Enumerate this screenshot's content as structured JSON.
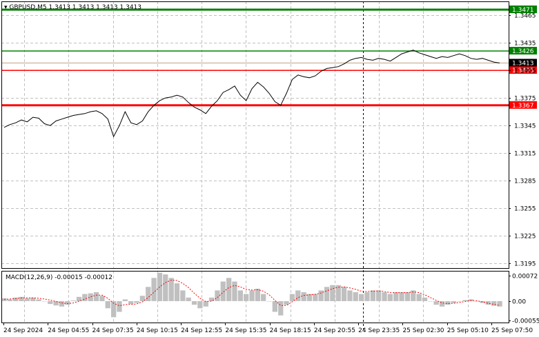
{
  "header": {
    "symbol": "GBPUSD,M5",
    "ohlc": "1.3413 1.3413 1.3413 1.3413"
  },
  "chart_data": [
    {
      "type": "line",
      "title": "GBPUSD,M5",
      "ylim": [
        1.319,
        1.348
      ],
      "y_ticks": [
        "1.3465",
        "1.3435",
        "1.3405",
        "1.3375",
        "1.3345",
        "1.3315",
        "1.3285",
        "1.3255",
        "1.3225",
        "1.3195"
      ],
      "x_ticks": [
        "24 Sep 2024",
        "24 Sep 04:55",
        "24 Sep 07:35",
        "24 Sep 10:15",
        "24 Sep 12:55",
        "24 Sep 15:35",
        "24 Sep 18:15",
        "24 Sep 20:55",
        "24 Sep 23:35",
        "25 Sep 02:30",
        "25 Sep 05:10",
        "25 Sep 07:50"
      ],
      "price": [
        1.3343,
        1.3346,
        1.3348,
        1.3351,
        1.3349,
        1.3354,
        1.3353,
        1.3347,
        1.3345,
        1.335,
        1.3352,
        1.3354,
        1.3356,
        1.3357,
        1.3358,
        1.336,
        1.3361,
        1.3358,
        1.3352,
        1.3333,
        1.3345,
        1.336,
        1.3348,
        1.3346,
        1.335,
        1.336,
        1.3367,
        1.3372,
        1.3375,
        1.3376,
        1.3378,
        1.3376,
        1.337,
        1.3365,
        1.3362,
        1.3358,
        1.3366,
        1.3372,
        1.3381,
        1.3384,
        1.3388,
        1.3378,
        1.3372,
        1.3385,
        1.3392,
        1.3387,
        1.338,
        1.3371,
        1.3367,
        1.338,
        1.3395,
        1.34,
        1.3398,
        1.3397,
        1.3399,
        1.3404,
        1.3407,
        1.3408,
        1.3409,
        1.3412,
        1.3416,
        1.3418,
        1.3419,
        1.3417,
        1.3416,
        1.3418,
        1.3417,
        1.3415,
        1.3419,
        1.3423,
        1.3425,
        1.3427,
        1.3424,
        1.3422,
        1.342,
        1.3418,
        1.342,
        1.3419,
        1.3421,
        1.3423,
        1.3421,
        1.3418,
        1.3417,
        1.3418,
        1.3416,
        1.3414,
        1.3413
      ],
      "levels": [
        {
          "label": "1.3471",
          "value": 1.3471,
          "color": "#008000"
        },
        {
          "label": "1.3426",
          "value": 1.3426,
          "color": "#008000"
        },
        {
          "label": "1.3405",
          "value": 1.3405,
          "color": "#ff0000"
        },
        {
          "label": "1.3367",
          "value": 1.3367,
          "color": "#ff0000"
        }
      ],
      "current": {
        "label": "1.3413",
        "value": 1.3413
      },
      "vline_x_index": 0.713
    },
    {
      "type": "bar",
      "title": "MACD(12,26,9) -0.00015 -0.00012",
      "ylim": [
        -0.0006,
        0.00085
      ],
      "y_ticks": [
        "0.00072",
        "0.00",
        "-0.00055"
      ],
      "histogram": [
        8e-05,
        5e-05,
        0.0001,
        0.00012,
        8e-05,
        0.0001,
        5e-05,
        0.0,
        -8e-05,
        -0.00012,
        -0.00015,
        -0.0001,
        2e-05,
        0.00012,
        0.0002,
        0.00022,
        0.00025,
        0.00015,
        -0.0002,
        -0.00045,
        -0.0003,
        5e-05,
        -8e-05,
        -5e-05,
        0.00015,
        0.0004,
        0.00065,
        0.0008,
        0.00075,
        0.00065,
        0.0005,
        0.0003,
        0.0001,
        -0.0001,
        -0.0002,
        -0.00015,
        0.0001,
        0.0003,
        0.00055,
        0.00065,
        0.00055,
        0.0003,
        0.0002,
        0.0003,
        0.00035,
        0.0002,
        0.0,
        -0.0003,
        -0.0004,
        -0.0001,
        0.0002,
        0.0003,
        0.00025,
        0.0002,
        0.0002,
        0.0003,
        0.0004,
        0.00045,
        0.00045,
        0.0004,
        0.0003,
        0.00025,
        0.0002,
        0.00025,
        0.0003,
        0.0003,
        0.00025,
        0.0002,
        0.00025,
        0.00025,
        0.00025,
        0.0003,
        0.0002,
        0.0001,
        0.0,
        -0.0001,
        -0.00015,
        -0.0001,
        -5e-05,
        0.0,
        3e-05,
        5e-05,
        0.0,
        -5e-05,
        -0.0001,
        -0.00013,
        -0.00015
      ],
      "signal": [
        5e-05,
        6e-05,
        7e-05,
        9e-05,
        9e-05,
        9e-05,
        8e-05,
        6e-05,
        3e-05,
        -1e-05,
        -5e-05,
        -7e-05,
        -5e-05,
        0.0,
        6e-05,
        0.00012,
        0.00017,
        0.00017,
        8e-05,
        -6e-05,
        -0.00013,
        -0.0001,
        -9e-05,
        -8e-05,
        -2e-05,
        0.0001,
        0.00025,
        0.0004,
        0.00052,
        0.00059,
        0.00058,
        0.0005,
        0.00038,
        0.00022,
        8e-05,
        -1e-05,
        0.0,
        0.0001,
        0.00025,
        0.00038,
        0.00044,
        0.0004,
        0.00033,
        0.00031,
        0.00032,
        0.00028,
        0.00018,
        2e-05,
        -0.00012,
        -0.00012,
        -2e-05,
        0.0001,
        0.00016,
        0.00018,
        0.00019,
        0.00023,
        0.00029,
        0.00035,
        0.00039,
        0.0004,
        0.00037,
        0.00033,
        0.00028,
        0.00027,
        0.00028,
        0.00029,
        0.00027,
        0.00024,
        0.00024,
        0.00024,
        0.00024,
        0.00026,
        0.00024,
        0.00018,
        0.0001,
        2e-05,
        -5e-05,
        -7e-05,
        -6e-05,
        -4e-05,
        -1e-05,
        2e-05,
        1e-05,
        -2e-05,
        -6e-05,
        -9e-05,
        -0.00012
      ]
    }
  ],
  "colors": {
    "background": "#ffffff",
    "grid": "#c0c0c0",
    "price_line": "#000000",
    "support": "#ff0000",
    "resistance": "#008000",
    "histogram": "#c0c0c0",
    "signal": "#ff0000"
  }
}
